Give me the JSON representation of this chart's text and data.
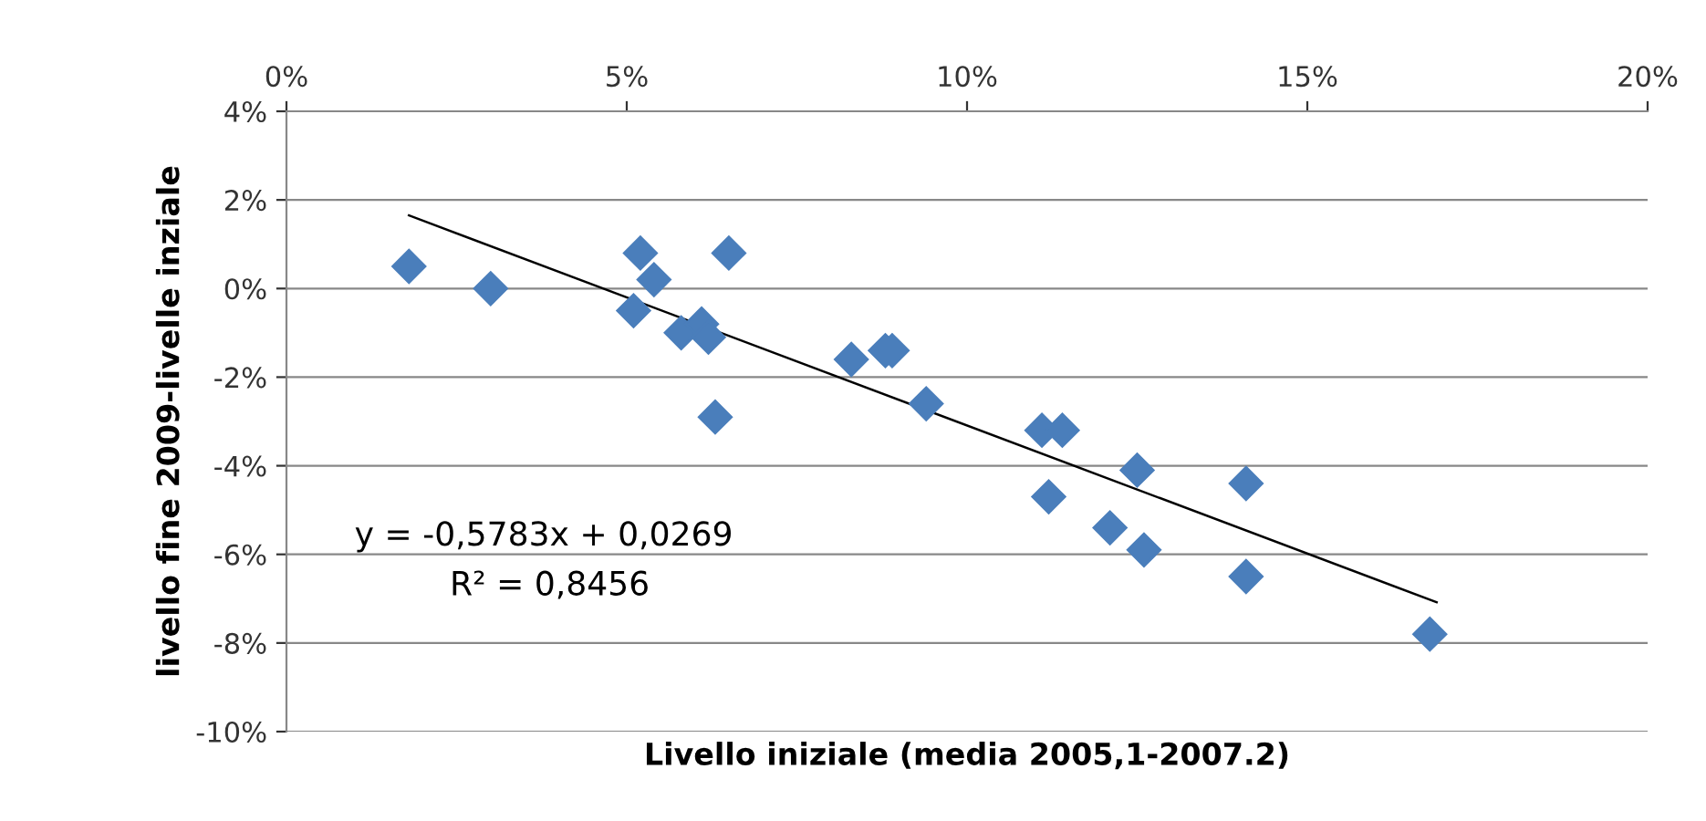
{
  "chart_data": {
    "type": "scatter",
    "xlabel": "Livello iniziale (media 2005,1-2007.2)",
    "ylabel": "livello fine 2009-livelle inziale",
    "xlim": [
      0,
      20
    ],
    "ylim": [
      -10,
      4
    ],
    "xticks": [
      {
        "value": 0,
        "label": "0%"
      },
      {
        "value": 5,
        "label": "5%"
      },
      {
        "value": 10,
        "label": "10%"
      },
      {
        "value": 15,
        "label": "15%"
      },
      {
        "value": 20,
        "label": "20%"
      }
    ],
    "yticks": [
      {
        "value": -10,
        "label": "-10%"
      },
      {
        "value": -8,
        "label": "-8%"
      },
      {
        "value": -6,
        "label": "-6%"
      },
      {
        "value": -4,
        "label": "-4%"
      },
      {
        "value": -2,
        "label": "-2%"
      },
      {
        "value": 0,
        "label": "0%"
      },
      {
        "value": 2,
        "label": "2%"
      },
      {
        "value": 4,
        "label": "4%"
      }
    ],
    "grid": "y",
    "marker": "diamond",
    "series": [
      {
        "color": "#4a7ebb",
        "x": [
          1.8,
          3.0,
          5.2,
          5.1,
          5.4,
          6.5,
          5.8,
          6.1,
          6.2,
          6.3,
          8.3,
          8.8,
          8.9,
          9.4,
          11.1,
          11.4,
          11.2,
          12.1,
          12.5,
          12.6,
          14.1,
          14.1,
          16.8
        ],
        "values": [
          0.5,
          0.0,
          0.8,
          -0.5,
          0.2,
          0.8,
          -1.0,
          -0.8,
          -1.1,
          -2.9,
          -1.6,
          -1.4,
          -1.4,
          -2.6,
          -3.2,
          -3.2,
          -4.7,
          -5.4,
          -4.1,
          -5.9,
          -4.4,
          -6.5,
          -7.8
        ]
      },
      {
        "type": "line",
        "color": "#000000",
        "marker": "none",
        "x": [
          1.8,
          16.9
        ],
        "values": [
          1.65,
          -7.08
        ]
      }
    ],
    "annotations": [
      "y = -0,5783x + 0,0269",
      "R² = 0,8456"
    ]
  }
}
